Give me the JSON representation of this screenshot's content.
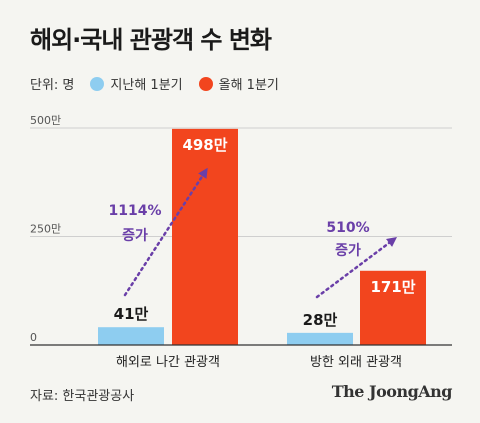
{
  "header": {
    "title": "해외·국내 관광객 수 변화"
  },
  "legend": {
    "unit_label": "단위: 명",
    "items": [
      {
        "label": "지난해 1분기",
        "color": "#8ecdf0"
      },
      {
        "label": "올해 1분기",
        "color": "#f2451e"
      }
    ]
  },
  "chart_data": {
    "type": "bar",
    "title": "해외·국내 관광객 수 변화",
    "unit": "명",
    "categories": [
      "해외로 나간 관광객",
      "방한 외래 관광객"
    ],
    "series": [
      {
        "name": "지난해 1분기",
        "values": [
          41,
          28
        ],
        "labels": [
          "41만",
          "28만"
        ],
        "color": "#8ecdf0"
      },
      {
        "name": "올해 1분기",
        "values": [
          498,
          171
        ],
        "labels": [
          "498만",
          "171만"
        ],
        "color": "#f2451e"
      }
    ],
    "ylim": [
      0,
      500
    ],
    "yticks": [
      0,
      250,
      500
    ],
    "ytick_labels": [
      "0",
      "250만",
      "500만"
    ],
    "annotations": [
      {
        "category": "해외로 나간 관광객",
        "text": [
          "1114%",
          "증가"
        ],
        "color": "#6a3fa8"
      },
      {
        "category": "방한 외래 관광객",
        "text": [
          "510%",
          "증가"
        ],
        "color": "#6a3fa8"
      }
    ]
  },
  "footer": {
    "source": "자료: 한국관광공사",
    "brand": "The JoongAng"
  }
}
